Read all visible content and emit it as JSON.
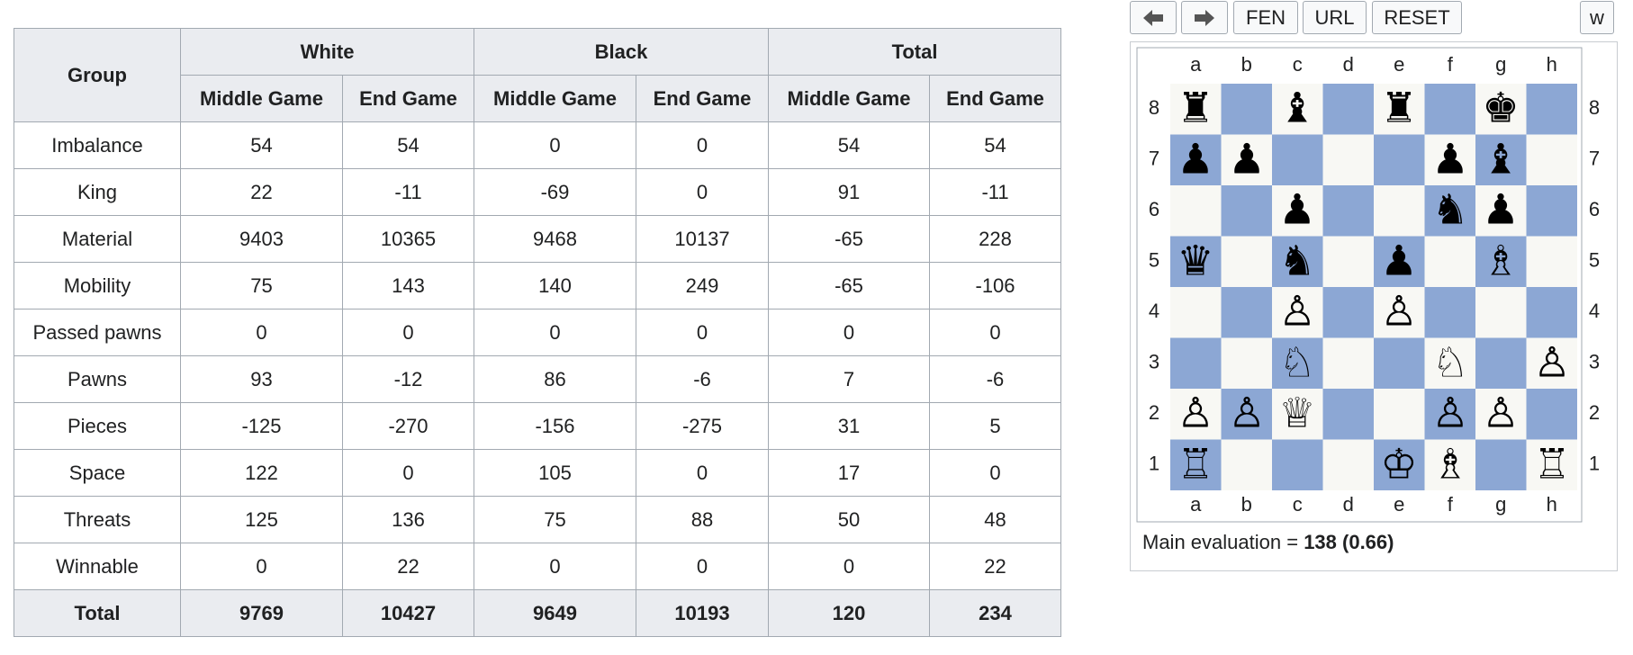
{
  "table": {
    "header": {
      "group": "Group",
      "columns": [
        "White",
        "Black",
        "Total"
      ],
      "subcolumns": [
        "Middle Game",
        "End Game"
      ]
    },
    "rows": [
      {
        "label": "Imbalance",
        "values": [
          54,
          54,
          0,
          0,
          54,
          54
        ]
      },
      {
        "label": "King",
        "values": [
          22,
          -11,
          -69,
          0,
          91,
          -11
        ]
      },
      {
        "label": "Material",
        "values": [
          9403,
          10365,
          9468,
          10137,
          -65,
          228
        ]
      },
      {
        "label": "Mobility",
        "values": [
          75,
          143,
          140,
          249,
          -65,
          -106
        ]
      },
      {
        "label": "Passed pawns",
        "values": [
          0,
          0,
          0,
          0,
          0,
          0
        ]
      },
      {
        "label": "Pawns",
        "values": [
          93,
          -12,
          86,
          -6,
          7,
          -6
        ]
      },
      {
        "label": "Pieces",
        "values": [
          -125,
          -270,
          -156,
          -275,
          31,
          5
        ]
      },
      {
        "label": "Space",
        "values": [
          122,
          0,
          105,
          0,
          17,
          0
        ]
      },
      {
        "label": "Threats",
        "values": [
          125,
          136,
          75,
          88,
          50,
          48
        ]
      },
      {
        "label": "Winnable",
        "values": [
          0,
          22,
          0,
          0,
          0,
          22
        ]
      }
    ],
    "total": {
      "label": "Total",
      "values": [
        9769,
        10427,
        9649,
        10193,
        120,
        234
      ]
    }
  },
  "board": {
    "buttons": [
      "FEN",
      "URL",
      "RESET"
    ],
    "side": "w",
    "files": [
      "a",
      "b",
      "c",
      "d",
      "e",
      "f",
      "g",
      "h"
    ],
    "ranks": [
      8,
      7,
      6,
      5,
      4,
      3,
      2,
      1
    ],
    "evaluation": {
      "label": "Main evaluation =",
      "value": "138 (0.66)"
    }
  }
}
